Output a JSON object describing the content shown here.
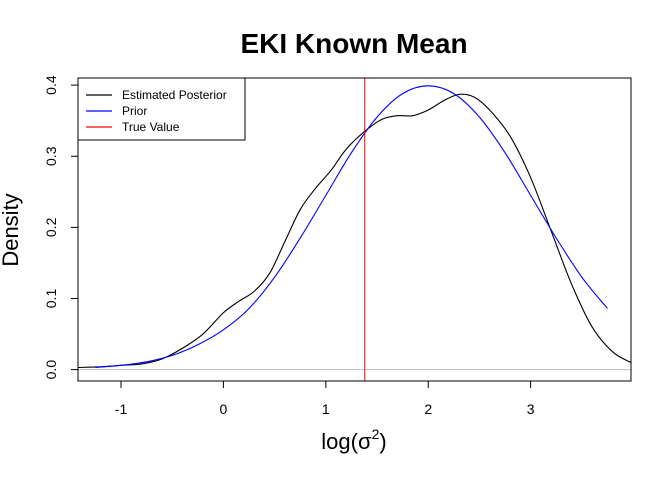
{
  "chart_data": {
    "type": "line",
    "title": "EKI Known Mean",
    "xlabel": "log(",
    "xlabel_symbol": "σ",
    "xlabel_sup": "2",
    "xlabel_close": ")",
    "ylabel": "Density",
    "xlim": [
      -1.42,
      3.98
    ],
    "ylim": [
      -0.016,
      0.41
    ],
    "x_ticks": [
      -1,
      0,
      1,
      2,
      3
    ],
    "x_tick_labels": [
      "-1",
      "0",
      "1",
      "2",
      "3"
    ],
    "y_ticks": [
      0.0,
      0.1,
      0.2,
      0.3,
      0.4
    ],
    "y_tick_labels": [
      "0.0",
      "0.1",
      "0.2",
      "0.3",
      "0.4"
    ],
    "baseline": 0,
    "baseline_color": "#bebebe",
    "vline": {
      "x": 1.38,
      "color": "#ff0000",
      "name": "True Value"
    },
    "legend": {
      "position": "top-left",
      "entries": [
        {
          "label": "Estimated Posterior",
          "color": "#000000"
        },
        {
          "label": "Prior",
          "color": "#0000ff"
        },
        {
          "label": "True Value",
          "color": "#ff0000"
        }
      ]
    },
    "series": [
      {
        "name": "Estimated Posterior",
        "color": "#000000",
        "points": [
          [
            -1.42,
            0.003
          ],
          [
            -1.2,
            0.004
          ],
          [
            -1.0,
            0.006
          ],
          [
            -0.8,
            0.008
          ],
          [
            -0.6,
            0.015
          ],
          [
            -0.4,
            0.03
          ],
          [
            -0.2,
            0.05
          ],
          [
            0.0,
            0.08
          ],
          [
            0.15,
            0.096
          ],
          [
            0.3,
            0.11
          ],
          [
            0.45,
            0.135
          ],
          [
            0.6,
            0.18
          ],
          [
            0.75,
            0.225
          ],
          [
            0.9,
            0.255
          ],
          [
            1.05,
            0.28
          ],
          [
            1.2,
            0.31
          ],
          [
            1.38,
            0.335
          ],
          [
            1.55,
            0.352
          ],
          [
            1.7,
            0.357
          ],
          [
            1.85,
            0.357
          ],
          [
            2.0,
            0.365
          ],
          [
            2.15,
            0.378
          ],
          [
            2.3,
            0.387
          ],
          [
            2.45,
            0.383
          ],
          [
            2.6,
            0.365
          ],
          [
            2.8,
            0.328
          ],
          [
            3.0,
            0.27
          ],
          [
            3.2,
            0.195
          ],
          [
            3.4,
            0.12
          ],
          [
            3.6,
            0.06
          ],
          [
            3.8,
            0.025
          ],
          [
            3.98,
            0.01
          ]
        ]
      },
      {
        "name": "Prior",
        "color": "#0000ff",
        "points": [
          [
            -1.25,
            0.003
          ],
          [
            -1.0,
            0.006
          ],
          [
            -0.75,
            0.011
          ],
          [
            -0.5,
            0.02
          ],
          [
            -0.25,
            0.035
          ],
          [
            0.0,
            0.056
          ],
          [
            0.25,
            0.086
          ],
          [
            0.5,
            0.13
          ],
          [
            0.75,
            0.185
          ],
          [
            1.0,
            0.245
          ],
          [
            1.25,
            0.305
          ],
          [
            1.5,
            0.355
          ],
          [
            1.75,
            0.388
          ],
          [
            2.0,
            0.399
          ],
          [
            2.25,
            0.388
          ],
          [
            2.5,
            0.355
          ],
          [
            2.75,
            0.305
          ],
          [
            3.0,
            0.245
          ],
          [
            3.25,
            0.185
          ],
          [
            3.5,
            0.13
          ],
          [
            3.75,
            0.086
          ]
        ]
      }
    ]
  }
}
